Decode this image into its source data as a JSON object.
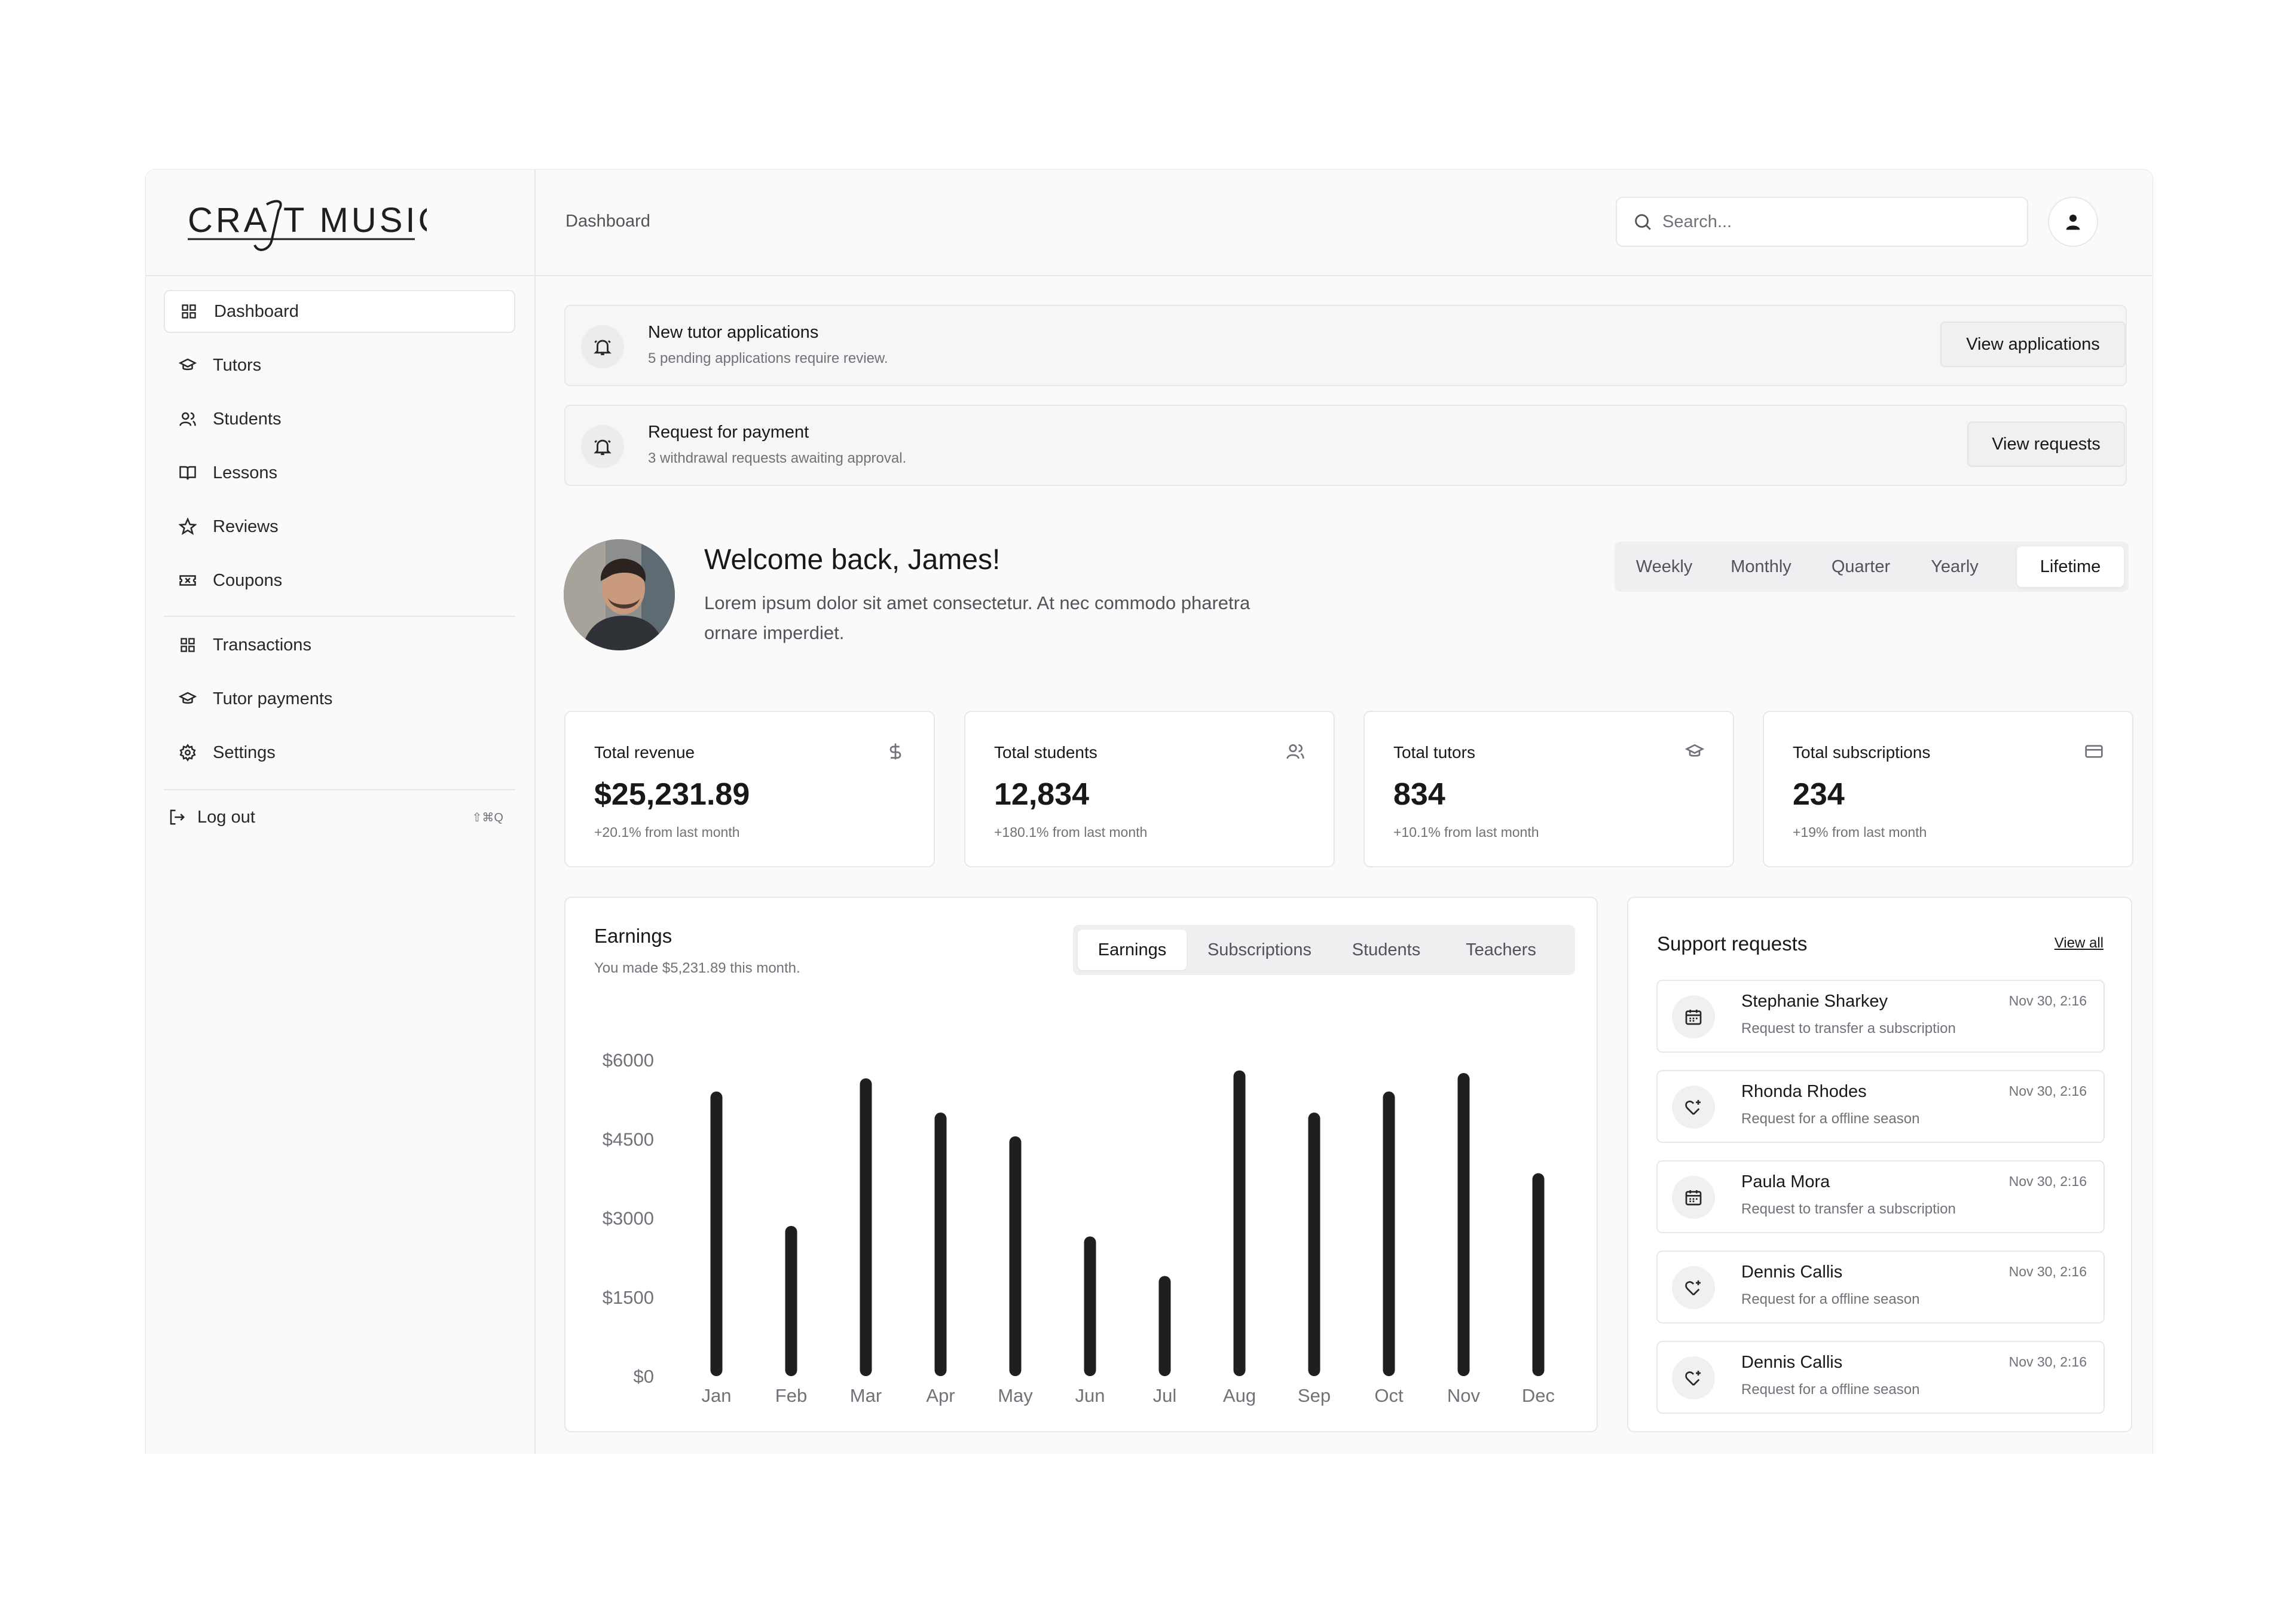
{
  "brand": {
    "logo_text": "CRAFT MUSIC"
  },
  "sidebar": {
    "items": [
      {
        "label": "Dashboard",
        "icon": "grid-icon",
        "active": true
      },
      {
        "label": "Tutors",
        "icon": "graduation-cap-icon"
      },
      {
        "label": "Students",
        "icon": "users-icon"
      },
      {
        "label": "Lessons",
        "icon": "book-icon"
      },
      {
        "label": "Reviews",
        "icon": "star-icon"
      },
      {
        "label": "Coupons",
        "icon": "ticket-icon"
      }
    ],
    "items2": [
      {
        "label": "Transactions",
        "icon": "grid-icon"
      },
      {
        "label": "Tutor payments",
        "icon": "graduation-cap-icon"
      },
      {
        "label": "Settings",
        "icon": "gear-icon"
      }
    ],
    "logout": {
      "label": "Log out",
      "shortcut": "⇧⌘Q"
    }
  },
  "header": {
    "breadcrumb": "Dashboard",
    "search_placeholder": "Search..."
  },
  "alerts": [
    {
      "title": "New tutor applications",
      "subtitle": "5 pending applications require review.",
      "button": "View applications"
    },
    {
      "title": "Request for payment",
      "subtitle": "3 withdrawal requests awaiting approval.",
      "button": "View requests"
    }
  ],
  "welcome": {
    "title": "Welcome back, James!",
    "subtitle": "Lorem ipsum dolor sit amet consectetur. At nec commodo pharetra ornare imperdiet."
  },
  "period_tabs": {
    "items": [
      "Weekly",
      "Monthly",
      "Quarter",
      "Yearly",
      "Lifetime"
    ],
    "active": "Lifetime"
  },
  "stats": [
    {
      "label": "Total revenue",
      "value": "$25,231.89",
      "delta": "+20.1% from last month",
      "icon": "dollar-icon"
    },
    {
      "label": "Total students",
      "value": "12,834",
      "delta": "+180.1% from last month",
      "icon": "users-icon"
    },
    {
      "label": "Total tutors",
      "value": "834",
      "delta": "+10.1% from last month",
      "icon": "graduation-cap-icon"
    },
    {
      "label": "Total subscriptions",
      "value": "234",
      "delta": "+19% from last month",
      "icon": "credit-card-icon"
    }
  ],
  "earnings": {
    "title": "Earnings",
    "subtitle": "You made $5,231.89 this month.",
    "tabs": [
      "Earnings",
      "Subscriptions",
      "Students",
      "Teachers"
    ],
    "active_tab": "Earnings"
  },
  "chart_data": {
    "type": "bar",
    "categories": [
      "Jan",
      "Feb",
      "Mar",
      "Apr",
      "May",
      "Jun",
      "Jul",
      "Aug",
      "Sep",
      "Oct",
      "Nov",
      "Dec"
    ],
    "values": [
      5400,
      2850,
      5650,
      5000,
      4550,
      2650,
      1900,
      5800,
      5000,
      5400,
      5750,
      3850
    ],
    "yticks": [
      "$6000",
      "$4500",
      "$3000",
      "$1500",
      "$0"
    ],
    "ylim": [
      0,
      6000
    ],
    "bar_color": "#1f1f1f"
  },
  "support": {
    "title": "Support requests",
    "view_all": "View all",
    "requests": [
      {
        "name": "Stephanie Sharkey",
        "subtitle": "Request to transfer a subscription",
        "time": "Nov 30, 2:16",
        "icon": "calendar-icon"
      },
      {
        "name": "Rhonda Rhodes",
        "subtitle": "Request for a offline season",
        "time": "Nov 30, 2:16",
        "icon": "heart-plus-icon"
      },
      {
        "name": "Paula Mora",
        "subtitle": "Request to transfer a subscription",
        "time": "Nov 30, 2:16",
        "icon": "calendar-icon"
      },
      {
        "name": "Dennis Callis",
        "subtitle": "Request for a offline season",
        "time": "Nov 30, 2:16",
        "icon": "heart-plus-icon"
      },
      {
        "name": "Dennis Callis",
        "subtitle": "Request for a offline season",
        "time": "Nov 30, 2:16",
        "icon": "heart-plus-icon"
      }
    ]
  }
}
